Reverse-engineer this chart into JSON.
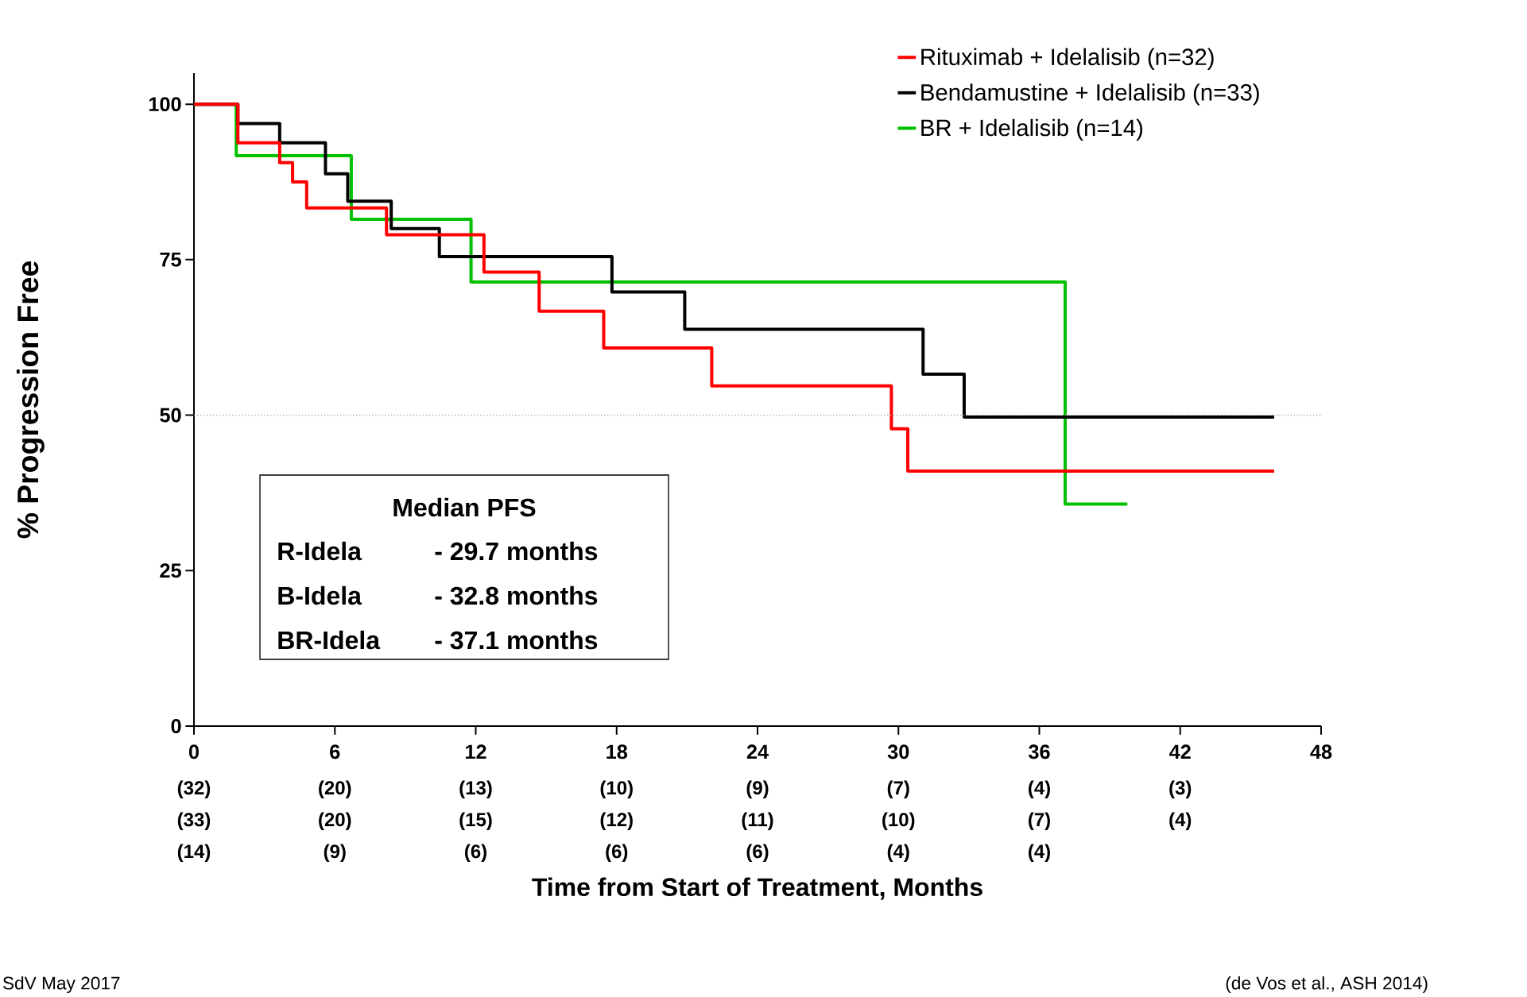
{
  "chart_data": {
    "type": "step",
    "xlabel": "Time from Start of Treatment, Months",
    "ylabel": "% Progression Free",
    "xlim": [
      0,
      48
    ],
    "ylim": [
      0,
      105
    ],
    "xticks": [
      0,
      6,
      12,
      18,
      24,
      30,
      36,
      42,
      48
    ],
    "yticks": [
      0,
      25,
      50,
      75,
      100
    ],
    "legend": "top right",
    "line_style": "solid",
    "ref_lines": [
      {
        "axis": "y",
        "value": 50,
        "color": "#a0a0a0",
        "line_style": "dotted"
      }
    ],
    "series": [
      {
        "name": "Rituximab + Idelalisib (n=32)",
        "color": "#ff0000",
        "x": [
          0,
          1.87,
          3.65,
          4.2,
          4.8,
          8.2,
          12.35,
          14.7,
          17.45,
          22.05,
          29.7,
          30.4,
          46
        ],
        "values": [
          100,
          93.8,
          90.6,
          87.5,
          83.3,
          79,
          73,
          66.7,
          60.8,
          54.7,
          47.8,
          41,
          41
        ]
      },
      {
        "name": "Bendamustine + Idelalisib (n=33)",
        "color": "#000000",
        "x": [
          0,
          1.87,
          3.65,
          5.6,
          6.55,
          8.4,
          10.45,
          17.8,
          20.9,
          31.05,
          32.8,
          46
        ],
        "values": [
          100,
          96.9,
          93.8,
          88.8,
          84.4,
          80,
          75.5,
          69.8,
          63.8,
          56.6,
          49.7,
          49.7
        ]
      },
      {
        "name": "BR + Idelalisib (n=14)",
        "color": "#00c000",
        "x": [
          0,
          1.8,
          6.7,
          11.8,
          37.1,
          39.75
        ],
        "values": [
          100,
          91.7,
          81.5,
          71.4,
          35.7,
          35.7
        ]
      }
    ],
    "annotations": [
      "Median PFS",
      "R-Idela",
      "- 29.7 months",
      "B-Idela",
      "- 32.8 months",
      "BR-Idela",
      "- 37.1 months",
      "(32)",
      "(20)",
      "(13)",
      "(10)",
      "(9)",
      "(7)",
      "(4)",
      "(3)",
      "(33)",
      "(20)",
      "(15)",
      "(12)",
      "(11)",
      "(10)",
      "(7)",
      "(4)",
      "(14)",
      "(9)",
      "(6)",
      "(6)",
      "(6)",
      "(4)",
      "(4)",
      "SdV May 2017",
      "(de Vos et al., ASH 2014)"
    ]
  }
}
